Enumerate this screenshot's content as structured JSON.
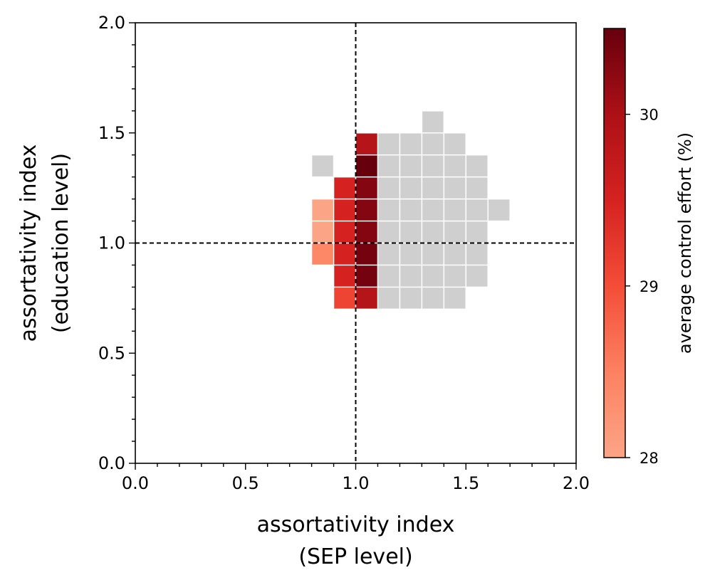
{
  "chart_data": {
    "type": "heatmap",
    "xlabel_lines": [
      "assortativity index",
      "(SEP level)"
    ],
    "ylabel_lines": [
      "assortativity index",
      "(education level)"
    ],
    "xlim": [
      0,
      2
    ],
    "ylim": [
      0,
      2
    ],
    "x_ticks": [
      "0.0",
      "0.5",
      "1.0",
      "1.5",
      "2.0"
    ],
    "y_ticks": [
      "0.0",
      "0.5",
      "1.0",
      "1.5",
      "2.0"
    ],
    "grid": false,
    "reference_lines": {
      "x": 1.0,
      "y": 1.0,
      "style": "dashed",
      "color": "#000000"
    },
    "cell_size": 0.1,
    "colorbar": {
      "label": "average control effort (%)",
      "range": [
        28.0,
        30.5
      ],
      "ticks": [
        {
          "value": 28,
          "label": "28"
        },
        {
          "value": 29,
          "label": "29"
        },
        {
          "value": 30,
          "label": "30"
        }
      ],
      "colormap": "Reds",
      "colors": [
        "#fca486",
        "#fc8161",
        "#f44d38",
        "#d52221",
        "#ad1016",
        "#67000d"
      ]
    },
    "gray_color": "#cfcfcf",
    "colored_cells": [
      {
        "x": 0.8,
        "y": 1.1,
        "value": 28.0
      },
      {
        "x": 0.8,
        "y": 1.0,
        "value": 28.0
      },
      {
        "x": 0.8,
        "y": 0.9,
        "value": 28.4
      },
      {
        "x": 0.9,
        "y": 1.2,
        "value": 29.5
      },
      {
        "x": 0.9,
        "y": 1.1,
        "value": 29.5
      },
      {
        "x": 0.9,
        "y": 1.0,
        "value": 29.5
      },
      {
        "x": 0.9,
        "y": 0.9,
        "value": 29.5
      },
      {
        "x": 0.9,
        "y": 0.8,
        "value": 29.5
      },
      {
        "x": 0.9,
        "y": 0.7,
        "value": 29.1
      },
      {
        "x": 1.0,
        "y": 1.4,
        "value": 29.9
      },
      {
        "x": 1.0,
        "y": 1.3,
        "value": 30.5
      },
      {
        "x": 1.0,
        "y": 1.2,
        "value": 30.3
      },
      {
        "x": 1.0,
        "y": 1.1,
        "value": 30.3
      },
      {
        "x": 1.0,
        "y": 1.0,
        "value": 30.3
      },
      {
        "x": 1.0,
        "y": 0.9,
        "value": 30.4
      },
      {
        "x": 1.0,
        "y": 0.8,
        "value": 30.4
      },
      {
        "x": 1.0,
        "y": 0.7,
        "value": 29.9
      }
    ],
    "gray_cells": [
      [
        1.3,
        1.5
      ],
      [
        1.1,
        1.4
      ],
      [
        1.2,
        1.4
      ],
      [
        1.3,
        1.4
      ],
      [
        1.4,
        1.4
      ],
      [
        0.8,
        1.3
      ],
      [
        1.1,
        1.3
      ],
      [
        1.2,
        1.3
      ],
      [
        1.3,
        1.3
      ],
      [
        1.4,
        1.3
      ],
      [
        1.5,
        1.3
      ],
      [
        1.1,
        1.2
      ],
      [
        1.2,
        1.2
      ],
      [
        1.3,
        1.2
      ],
      [
        1.4,
        1.2
      ],
      [
        1.5,
        1.2
      ],
      [
        1.1,
        1.1
      ],
      [
        1.2,
        1.1
      ],
      [
        1.3,
        1.1
      ],
      [
        1.4,
        1.1
      ],
      [
        1.5,
        1.1
      ],
      [
        1.6,
        1.1
      ],
      [
        1.1,
        1.0
      ],
      [
        1.2,
        1.0
      ],
      [
        1.3,
        1.0
      ],
      [
        1.4,
        1.0
      ],
      [
        1.5,
        1.0
      ],
      [
        0.8,
        0.9
      ],
      [
        1.1,
        0.9
      ],
      [
        1.2,
        0.9
      ],
      [
        1.3,
        0.9
      ],
      [
        1.4,
        0.9
      ],
      [
        1.5,
        0.9
      ],
      [
        1.1,
        0.8
      ],
      [
        1.2,
        0.8
      ],
      [
        1.3,
        0.8
      ],
      [
        1.4,
        0.8
      ],
      [
        1.5,
        0.8
      ],
      [
        0.9,
        0.7
      ],
      [
        1.0,
        0.7
      ],
      [
        1.1,
        0.7
      ],
      [
        1.2,
        0.7
      ],
      [
        1.3,
        0.7
      ],
      [
        1.4,
        0.7
      ]
    ]
  }
}
